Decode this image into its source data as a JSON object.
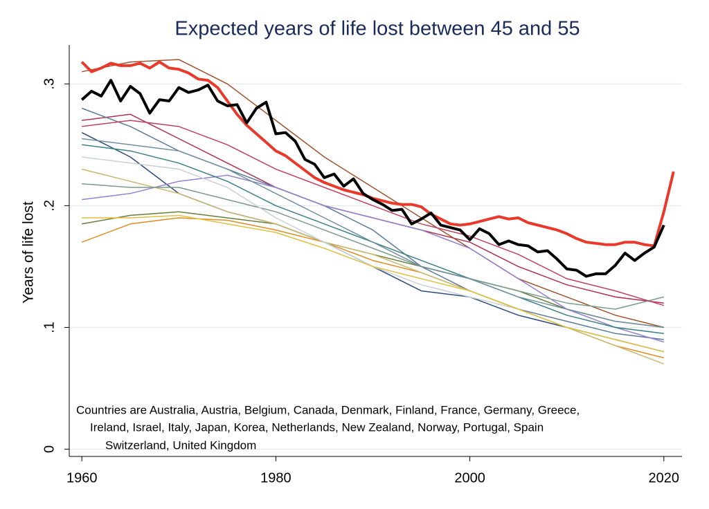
{
  "chart_data": {
    "type": "line",
    "title": "Expected years of life lost between 45 and 55",
    "y_label": "Years of life lost",
    "note": [
      "Countries are Australia, Austria, Belgium, Canada, Denmark, Finland, France, Germany, Greece,",
      "Ireland, Israel, Italy, Japan, Korea, Netherlands, New Zealand, Norway, Portugal, Spain",
      "Switzerland, United Kingdom"
    ],
    "xlim": [
      1958.7,
      2022.8
    ],
    "ylim": [
      -0.006,
      0.332
    ],
    "xticks": [
      1960,
      1980,
      2000,
      2020
    ],
    "yticks": [
      {
        "value": 0.3,
        "label": ".3"
      },
      {
        "value": 0.2,
        "label": ".2"
      },
      {
        "value": 0.1,
        "label": ".1"
      },
      0
    ],
    "grid": true,
    "x": [
      1960,
      1961,
      1962,
      1963,
      1964,
      1965,
      1966,
      1967,
      1968,
      1969,
      1970,
      1971,
      1972,
      1973,
      1974,
      1975,
      1976,
      1977,
      1978,
      1979,
      1980,
      1981,
      1982,
      1983,
      1984,
      1985,
      1986,
      1987,
      1988,
      1989,
      1990,
      1991,
      1992,
      1993,
      1994,
      1995,
      1996,
      1997,
      1998,
      1999,
      2000,
      2001,
      2002,
      2003,
      2004,
      2005,
      2006,
      2007,
      2008,
      2009,
      2010,
      2011,
      2012,
      2013,
      2014,
      2015,
      2016,
      2017,
      2018,
      2019,
      2020,
      2021
    ],
    "series": [
      {
        "color": "#a0522d",
        "x": [
          1960,
          1965,
          1970,
          1975,
          1980,
          1985,
          1990,
          1995,
          2000,
          2005,
          2010,
          2015,
          2020
        ],
        "values": [
          0.31,
          0.318,
          0.32,
          0.3,
          0.27,
          0.24,
          0.215,
          0.19,
          0.165,
          0.14,
          0.125,
          0.11,
          0.1
        ]
      },
      {
        "color": "#b03050",
        "x": [
          1960,
          1965,
          1970,
          1975,
          1980,
          1985,
          1990,
          1995,
          2000,
          2005,
          2010,
          2015,
          2020
        ],
        "values": [
          0.27,
          0.275,
          0.255,
          0.235,
          0.215,
          0.2,
          0.19,
          0.18,
          0.17,
          0.15,
          0.135,
          0.125,
          0.12
        ]
      },
      {
        "color": "#5b7a9a",
        "x": [
          1960,
          1965,
          1970,
          1975,
          1980,
          1985,
          1990,
          1995,
          2000,
          2005,
          2010,
          2015,
          2020
        ],
        "values": [
          0.28,
          0.265,
          0.245,
          0.23,
          0.215,
          0.2,
          0.18,
          0.15,
          0.13,
          0.115,
          0.105,
          0.095,
          0.09
        ]
      },
      {
        "color": "#2a4a7a",
        "x": [
          1960,
          1965,
          1970,
          1975,
          1980,
          1985,
          1990,
          1995,
          2000,
          2005,
          2010,
          2015,
          2020
        ],
        "values": [
          0.26,
          0.24,
          0.21,
          0.195,
          0.185,
          0.17,
          0.15,
          0.13,
          0.125,
          0.11,
          0.1,
          0.09,
          0.08
        ]
      },
      {
        "color": "#6b7d3a",
        "x": [
          1960,
          1965,
          1970,
          1975,
          1980,
          1985,
          1990,
          1995,
          2000,
          2005,
          2010,
          2015,
          2020
        ],
        "values": [
          0.185,
          0.192,
          0.195,
          0.19,
          0.185,
          0.17,
          0.16,
          0.15,
          0.14,
          0.13,
          0.115,
          0.105,
          0.1
        ]
      },
      {
        "color": "#e08a20",
        "x": [
          1960,
          1965,
          1970,
          1975,
          1980,
          1985,
          1990,
          1995,
          2000,
          2005,
          2010,
          2015,
          2020
        ],
        "values": [
          0.17,
          0.185,
          0.19,
          0.188,
          0.18,
          0.17,
          0.155,
          0.145,
          0.13,
          0.115,
          0.1,
          0.085,
          0.075
        ]
      },
      {
        "color": "#9080d0",
        "x": [
          1960,
          1965,
          1970,
          1975,
          1980,
          1985,
          1990,
          1995,
          2000,
          2005,
          2010,
          2015,
          2020
        ],
        "values": [
          0.205,
          0.21,
          0.22,
          0.225,
          0.215,
          0.2,
          0.19,
          0.18,
          0.165,
          0.14,
          0.115,
          0.1,
          0.088
        ]
      },
      {
        "color": "#c8b870",
        "x": [
          1960,
          1965,
          1970,
          1975,
          1980,
          1985,
          1990,
          1995,
          2000,
          2005,
          2010,
          2015,
          2020
        ],
        "values": [
          0.23,
          0.22,
          0.21,
          0.195,
          0.185,
          0.17,
          0.16,
          0.145,
          0.13,
          0.115,
          0.1,
          0.085,
          0.07
        ]
      },
      {
        "color": "#7a9a8a",
        "x": [
          1960,
          1965,
          1970,
          1975,
          1980,
          1985,
          1990,
          1995,
          2000,
          2005,
          2010,
          2015,
          2020
        ],
        "values": [
          0.218,
          0.215,
          0.215,
          0.205,
          0.195,
          0.18,
          0.165,
          0.15,
          0.14,
          0.13,
          0.12,
          0.115,
          0.125
        ]
      },
      {
        "color": "#3a8080",
        "x": [
          1960,
          1965,
          1970,
          1975,
          1980,
          1985,
          1990,
          1995,
          2000,
          2005,
          2010,
          2015,
          2020
        ],
        "values": [
          0.25,
          0.245,
          0.235,
          0.22,
          0.2,
          0.185,
          0.17,
          0.155,
          0.14,
          0.125,
          0.11,
          0.1,
          0.095
        ]
      },
      {
        "color": "#c8d0d8",
        "x": [
          1960,
          1965,
          1970,
          1975,
          1980,
          1985,
          1990,
          1995,
          2000,
          2005,
          2010,
          2015,
          2020
        ],
        "values": [
          0.24,
          0.235,
          0.23,
          0.215,
          0.19,
          0.17,
          0.15,
          0.135,
          0.125,
          0.115,
          0.1,
          0.09,
          0.08
        ]
      },
      {
        "color": "#e0c040",
        "x": [
          1960,
          1965,
          1970,
          1975,
          1980,
          1985,
          1990,
          1995,
          2000,
          2005,
          2010,
          2015,
          2020
        ],
        "values": [
          0.19,
          0.19,
          0.192,
          0.185,
          0.178,
          0.165,
          0.15,
          0.14,
          0.13,
          0.115,
          0.1,
          0.09,
          0.08
        ]
      },
      {
        "color": "#c04060",
        "x": [
          1960,
          1965,
          1970,
          1975,
          1980,
          1985,
          1990,
          1995,
          2000,
          2005,
          2010,
          2015,
          2020
        ],
        "values": [
          0.265,
          0.27,
          0.265,
          0.25,
          0.23,
          0.215,
          0.2,
          0.185,
          0.175,
          0.16,
          0.14,
          0.13,
          0.118
        ]
      },
      {
        "color": "#7090a0",
        "x": [
          1960,
          1965,
          1970,
          1975,
          1980,
          1985,
          1990,
          1995,
          2000,
          2005,
          2010,
          2015,
          2020
        ],
        "values": [
          0.255,
          0.25,
          0.245,
          0.23,
          0.21,
          0.19,
          0.17,
          0.15,
          0.14,
          0.125,
          0.115,
          0.105,
          0.1
        ]
      },
      {
        "color": "#e8392b",
        "width": 4,
        "values": [
          0.318,
          0.31,
          0.313,
          0.317,
          0.315,
          0.315,
          0.317,
          0.313,
          0.318,
          0.313,
          0.312,
          0.309,
          0.304,
          0.303,
          0.297,
          0.286,
          0.275,
          0.266,
          0.259,
          0.252,
          0.245,
          0.241,
          0.235,
          0.229,
          0.223,
          0.219,
          0.216,
          0.213,
          0.211,
          0.209,
          0.206,
          0.204,
          0.202,
          0.201,
          0.201,
          0.199,
          0.193,
          0.189,
          0.185,
          0.184,
          0.185,
          0.187,
          0.189,
          0.191,
          0.189,
          0.19,
          0.186,
          0.184,
          0.182,
          0.18,
          0.177,
          0.173,
          0.17,
          0.169,
          0.168,
          0.168,
          0.17,
          0.17,
          0.168,
          0.167,
          0.195,
          0.228
        ]
      },
      {
        "color": "#000000",
        "width": 4,
        "values": [
          0.287,
          0.294,
          0.29,
          0.303,
          0.286,
          0.298,
          0.292,
          0.276,
          0.287,
          0.286,
          0.297,
          0.293,
          0.295,
          0.299,
          0.286,
          0.282,
          0.283,
          0.268,
          0.28,
          0.285,
          0.259,
          0.26,
          0.253,
          0.238,
          0.234,
          0.223,
          0.226,
          0.216,
          0.222,
          0.21,
          0.205,
          0.201,
          0.196,
          0.197,
          0.185,
          0.189,
          0.194,
          0.184,
          0.182,
          0.18,
          0.172,
          0.181,
          0.177,
          0.168,
          0.171,
          0.168,
          0.167,
          0.162,
          0.163,
          0.156,
          0.148,
          0.147,
          0.142,
          0.144,
          0.144,
          0.151,
          0.161,
          0.155,
          0.161,
          0.166,
          0.184,
          null
        ]
      }
    ]
  }
}
